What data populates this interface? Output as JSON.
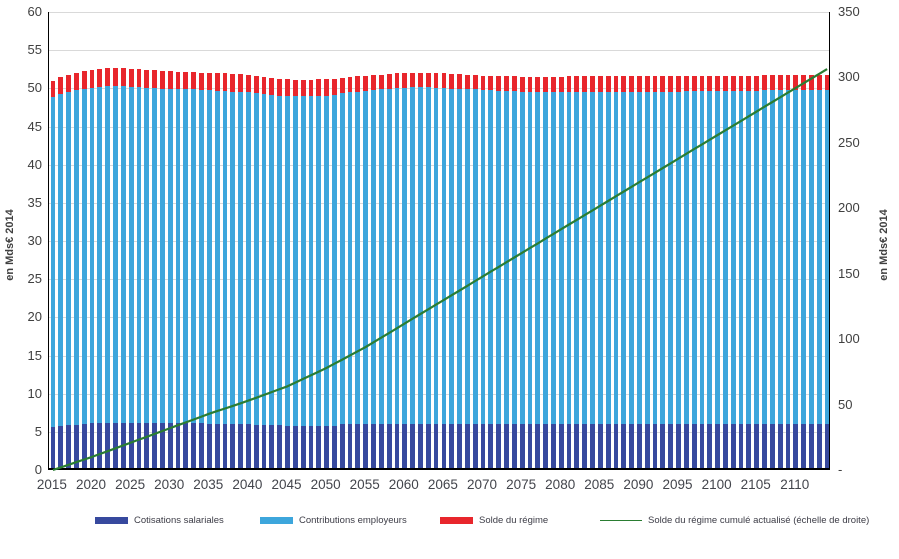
{
  "accent_colors": {
    "cotisations": "#37499e",
    "employeurs": "#3da6dc",
    "solde": "#e8262c",
    "cumul_line": "#2a7d32",
    "gridline": "#d9d9d9",
    "axis": "#000000"
  },
  "left_axis": {
    "label": "en Mds€ 2014",
    "min": 0,
    "max": 60,
    "step": 5,
    "tick_labels": [
      "0",
      "5",
      "10",
      "15",
      "20",
      "25",
      "30",
      "35",
      "40",
      "45",
      "50",
      "55",
      "60"
    ]
  },
  "right_axis": {
    "label": "en Mds€ 2014",
    "min": 0,
    "max": 350,
    "step": 50,
    "tick_labels": [
      "-",
      "50",
      "100",
      "150",
      "200",
      "250",
      "300",
      "350"
    ]
  },
  "x_axis": {
    "first_year": 2015,
    "last_year": 2114,
    "tick_labels": [
      "2015",
      "2020",
      "2025",
      "2030",
      "2035",
      "2040",
      "2045",
      "2050",
      "2055",
      "2060",
      "2065",
      "2070",
      "2075",
      "2080",
      "2085",
      "2090",
      "2095",
      "2100",
      "2105",
      "2110"
    ]
  },
  "legend": {
    "items": [
      {
        "label": "Cotisations salariales",
        "swatch": "bar",
        "color": "#37499e"
      },
      {
        "label": "Contributions employeurs",
        "swatch": "bar",
        "color": "#3da6dc"
      },
      {
        "label": "Solde du régime",
        "swatch": "bar",
        "color": "#e8262c"
      },
      {
        "label": "Solde du régime cumulé actualisé (échelle de droite)",
        "swatch": "line",
        "color": "#2a7d32"
      }
    ]
  },
  "chart_data": {
    "type": "bar",
    "subtype": "stacked-bars-with-line",
    "title": "",
    "x_start": 2015,
    "x_count": 100,
    "xlabel": "",
    "ylabel_left": "en Mds€ 2014",
    "ylabel_right": "en Mds€ 2014",
    "ylim_left": [
      0,
      60
    ],
    "ylim_right": [
      0,
      350
    ],
    "grid": true,
    "legend_position": "bottom",
    "series": [
      {
        "name": "Cotisations salariales",
        "type": "bar",
        "stacked": true,
        "axis": "left",
        "color": "#37499e",
        "values": [
          5.4,
          5.5,
          5.6,
          5.7,
          5.8,
          5.9,
          5.9,
          5.9,
          5.9,
          5.9,
          5.9,
          5.9,
          5.9,
          5.9,
          5.9,
          5.9,
          5.9,
          5.9,
          5.9,
          5.9,
          5.8,
          5.8,
          5.8,
          5.8,
          5.8,
          5.8,
          5.7,
          5.7,
          5.6,
          5.6,
          5.5,
          5.5,
          5.5,
          5.5,
          5.5,
          5.5,
          5.5,
          5.8,
          5.8,
          5.8,
          5.8,
          5.8,
          5.8,
          5.8,
          5.8,
          5.8,
          5.8,
          5.8,
          5.8,
          5.8,
          5.8,
          5.8,
          5.8,
          5.8,
          5.8,
          5.8,
          5.8,
          5.8,
          5.8,
          5.8,
          5.8,
          5.8,
          5.8,
          5.8,
          5.8,
          5.8,
          5.8,
          5.8,
          5.8,
          5.8,
          5.8,
          5.8,
          5.8,
          5.8,
          5.8,
          5.8,
          5.8,
          5.8,
          5.8,
          5.8,
          5.8,
          5.8,
          5.8,
          5.8,
          5.8,
          5.8,
          5.8,
          5.8,
          5.8,
          5.8,
          5.8,
          5.8,
          5.8,
          5.8,
          5.8,
          5.8,
          5.8,
          5.8,
          5.8,
          5.8
        ]
      },
      {
        "name": "Contributions employeurs",
        "type": "bar",
        "stacked": true,
        "axis": "left",
        "color": "#3da6dc",
        "values": [
          43.2,
          43.5,
          43.7,
          43.8,
          43.9,
          43.9,
          44.0,
          44.1,
          44.1,
          44.1,
          44.0,
          44.0,
          43.9,
          43.9,
          43.8,
          43.8,
          43.7,
          43.7,
          43.7,
          43.6,
          43.7,
          43.6,
          43.6,
          43.5,
          43.5,
          43.4,
          43.4,
          43.3,
          43.3,
          43.2,
          43.3,
          43.2,
          43.2,
          43.2,
          43.3,
          43.3,
          43.4,
          43.3,
          43.4,
          43.5,
          43.6,
          43.7,
          43.8,
          43.9,
          44.0,
          44.0,
          44.1,
          44.1,
          44.1,
          44.0,
          44.0,
          43.9,
          43.9,
          43.8,
          43.8,
          43.7,
          43.7,
          43.6,
          43.6,
          43.6,
          43.5,
          43.5,
          43.5,
          43.5,
          43.5,
          43.5,
          43.5,
          43.5,
          43.5,
          43.5,
          43.5,
          43.5,
          43.5,
          43.5,
          43.5,
          43.5,
          43.5,
          43.5,
          43.5,
          43.5,
          43.5,
          43.6,
          43.6,
          43.6,
          43.6,
          43.6,
          43.6,
          43.6,
          43.6,
          43.6,
          43.6,
          43.7,
          43.7,
          43.7,
          43.7,
          43.7,
          43.7,
          43.7,
          43.7,
          43.7
        ]
      },
      {
        "name": "Solde du régime",
        "type": "bar",
        "stacked": true,
        "axis": "left",
        "color": "#e8262c",
        "values": [
          2.1,
          2.2,
          2.2,
          2.3,
          2.3,
          2.4,
          2.4,
          2.4,
          2.4,
          2.4,
          2.4,
          2.4,
          2.3,
          2.3,
          2.3,
          2.3,
          2.3,
          2.3,
          2.3,
          2.3,
          2.3,
          2.3,
          2.3,
          2.3,
          2.3,
          2.3,
          2.2,
          2.2,
          2.2,
          2.2,
          2.1,
          2.1,
          2.1,
          2.1,
          2.1,
          2.1,
          2.1,
          2.0,
          2.0,
          2.0,
          2.0,
          2.0,
          1.9,
          1.9,
          1.9,
          1.9,
          1.9,
          1.9,
          1.9,
          1.9,
          1.9,
          1.9,
          1.9,
          1.9,
          1.9,
          1.9,
          1.9,
          1.9,
          1.9,
          1.9,
          1.9,
          1.9,
          1.9,
          1.9,
          1.9,
          1.9,
          2.0,
          2.0,
          2.0,
          2.0,
          2.0,
          2.0,
          2.0,
          2.0,
          2.0,
          2.0,
          2.0,
          2.0,
          2.0,
          2.0,
          2.0,
          2.0,
          2.0,
          2.0,
          2.0,
          2.0,
          2.0,
          2.0,
          2.0,
          2.0,
          2.0,
          2.0,
          2.0,
          2.0,
          2.0,
          2.0,
          2.0,
          2.0,
          2.0,
          2.0
        ]
      },
      {
        "name": "Solde du régime cumulé actualisé (échelle de droite)",
        "type": "line",
        "stacked": false,
        "axis": "right",
        "color": "#2a7d32",
        "values": [
          0,
          2,
          4,
          6,
          8,
          10,
          12.2,
          14.4,
          16.6,
          18.8,
          21,
          23.2,
          25.4,
          27.6,
          29.8,
          32,
          34.2,
          36.4,
          38.6,
          40.8,
          43,
          45,
          47,
          49,
          51,
          53,
          55.2,
          57.4,
          59.6,
          61.8,
          64,
          66.8,
          69.6,
          72.4,
          75.2,
          78,
          81.2,
          84.4,
          87.6,
          90.8,
          94,
          97.6,
          101.2,
          104.8,
          108.4,
          112,
          115.6,
          119.2,
          122.8,
          126.4,
          130,
          133.6,
          137.2,
          140.8,
          144.4,
          148,
          151.6,
          155.2,
          158.8,
          162.4,
          166,
          169.6,
          173.2,
          176.8,
          180.4,
          184,
          187.6,
          191.2,
          194.8,
          198.4,
          202,
          205.6,
          209.2,
          212.8,
          216.4,
          220,
          223.6,
          227.2,
          230.8,
          234.4,
          238,
          241.6,
          245.2,
          248.8,
          252.4,
          256,
          259.6,
          263.2,
          266.8,
          270.4,
          274,
          277.6,
          281.2,
          284.8,
          288.4,
          292,
          295.6,
          299.2,
          302.8,
          306.4
        ]
      }
    ]
  }
}
